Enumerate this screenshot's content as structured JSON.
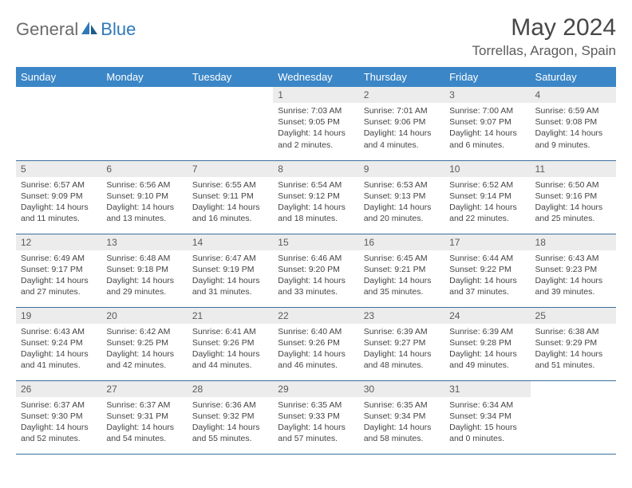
{
  "brand": {
    "text1": "General",
    "text2": "Blue"
  },
  "title": "May 2024",
  "location": "Torrellas, Aragon, Spain",
  "colors": {
    "header_bg": "#3b86c6",
    "header_text": "#ffffff",
    "row_border": "#3b6f9d",
    "daynum_bg": "#ececec",
    "daynum_text": "#5a5a5a",
    "body_text": "#444444",
    "title_text": "#474747",
    "location_text": "#5b5b5b",
    "logo_gray": "#6b6b6b",
    "logo_blue": "#2e79b8"
  },
  "typography": {
    "title_fontsize": 30,
    "location_fontsize": 17,
    "header_fontsize": 13,
    "daynum_fontsize": 12,
    "body_fontsize": 10.5
  },
  "weekdays": [
    "Sunday",
    "Monday",
    "Tuesday",
    "Wednesday",
    "Thursday",
    "Friday",
    "Saturday"
  ],
  "weeks": [
    [
      {
        "empty": true
      },
      {
        "empty": true
      },
      {
        "empty": true
      },
      {
        "day": "1",
        "sunrise": "Sunrise: 7:03 AM",
        "sunset": "Sunset: 9:05 PM",
        "daylight": "Daylight: 14 hours and 2 minutes."
      },
      {
        "day": "2",
        "sunrise": "Sunrise: 7:01 AM",
        "sunset": "Sunset: 9:06 PM",
        "daylight": "Daylight: 14 hours and 4 minutes."
      },
      {
        "day": "3",
        "sunrise": "Sunrise: 7:00 AM",
        "sunset": "Sunset: 9:07 PM",
        "daylight": "Daylight: 14 hours and 6 minutes."
      },
      {
        "day": "4",
        "sunrise": "Sunrise: 6:59 AM",
        "sunset": "Sunset: 9:08 PM",
        "daylight": "Daylight: 14 hours and 9 minutes."
      }
    ],
    [
      {
        "day": "5",
        "sunrise": "Sunrise: 6:57 AM",
        "sunset": "Sunset: 9:09 PM",
        "daylight": "Daylight: 14 hours and 11 minutes."
      },
      {
        "day": "6",
        "sunrise": "Sunrise: 6:56 AM",
        "sunset": "Sunset: 9:10 PM",
        "daylight": "Daylight: 14 hours and 13 minutes."
      },
      {
        "day": "7",
        "sunrise": "Sunrise: 6:55 AM",
        "sunset": "Sunset: 9:11 PM",
        "daylight": "Daylight: 14 hours and 16 minutes."
      },
      {
        "day": "8",
        "sunrise": "Sunrise: 6:54 AM",
        "sunset": "Sunset: 9:12 PM",
        "daylight": "Daylight: 14 hours and 18 minutes."
      },
      {
        "day": "9",
        "sunrise": "Sunrise: 6:53 AM",
        "sunset": "Sunset: 9:13 PM",
        "daylight": "Daylight: 14 hours and 20 minutes."
      },
      {
        "day": "10",
        "sunrise": "Sunrise: 6:52 AM",
        "sunset": "Sunset: 9:14 PM",
        "daylight": "Daylight: 14 hours and 22 minutes."
      },
      {
        "day": "11",
        "sunrise": "Sunrise: 6:50 AM",
        "sunset": "Sunset: 9:16 PM",
        "daylight": "Daylight: 14 hours and 25 minutes."
      }
    ],
    [
      {
        "day": "12",
        "sunrise": "Sunrise: 6:49 AM",
        "sunset": "Sunset: 9:17 PM",
        "daylight": "Daylight: 14 hours and 27 minutes."
      },
      {
        "day": "13",
        "sunrise": "Sunrise: 6:48 AM",
        "sunset": "Sunset: 9:18 PM",
        "daylight": "Daylight: 14 hours and 29 minutes."
      },
      {
        "day": "14",
        "sunrise": "Sunrise: 6:47 AM",
        "sunset": "Sunset: 9:19 PM",
        "daylight": "Daylight: 14 hours and 31 minutes."
      },
      {
        "day": "15",
        "sunrise": "Sunrise: 6:46 AM",
        "sunset": "Sunset: 9:20 PM",
        "daylight": "Daylight: 14 hours and 33 minutes."
      },
      {
        "day": "16",
        "sunrise": "Sunrise: 6:45 AM",
        "sunset": "Sunset: 9:21 PM",
        "daylight": "Daylight: 14 hours and 35 minutes."
      },
      {
        "day": "17",
        "sunrise": "Sunrise: 6:44 AM",
        "sunset": "Sunset: 9:22 PM",
        "daylight": "Daylight: 14 hours and 37 minutes."
      },
      {
        "day": "18",
        "sunrise": "Sunrise: 6:43 AM",
        "sunset": "Sunset: 9:23 PM",
        "daylight": "Daylight: 14 hours and 39 minutes."
      }
    ],
    [
      {
        "day": "19",
        "sunrise": "Sunrise: 6:43 AM",
        "sunset": "Sunset: 9:24 PM",
        "daylight": "Daylight: 14 hours and 41 minutes."
      },
      {
        "day": "20",
        "sunrise": "Sunrise: 6:42 AM",
        "sunset": "Sunset: 9:25 PM",
        "daylight": "Daylight: 14 hours and 42 minutes."
      },
      {
        "day": "21",
        "sunrise": "Sunrise: 6:41 AM",
        "sunset": "Sunset: 9:26 PM",
        "daylight": "Daylight: 14 hours and 44 minutes."
      },
      {
        "day": "22",
        "sunrise": "Sunrise: 6:40 AM",
        "sunset": "Sunset: 9:26 PM",
        "daylight": "Daylight: 14 hours and 46 minutes."
      },
      {
        "day": "23",
        "sunrise": "Sunrise: 6:39 AM",
        "sunset": "Sunset: 9:27 PM",
        "daylight": "Daylight: 14 hours and 48 minutes."
      },
      {
        "day": "24",
        "sunrise": "Sunrise: 6:39 AM",
        "sunset": "Sunset: 9:28 PM",
        "daylight": "Daylight: 14 hours and 49 minutes."
      },
      {
        "day": "25",
        "sunrise": "Sunrise: 6:38 AM",
        "sunset": "Sunset: 9:29 PM",
        "daylight": "Daylight: 14 hours and 51 minutes."
      }
    ],
    [
      {
        "day": "26",
        "sunrise": "Sunrise: 6:37 AM",
        "sunset": "Sunset: 9:30 PM",
        "daylight": "Daylight: 14 hours and 52 minutes."
      },
      {
        "day": "27",
        "sunrise": "Sunrise: 6:37 AM",
        "sunset": "Sunset: 9:31 PM",
        "daylight": "Daylight: 14 hours and 54 minutes."
      },
      {
        "day": "28",
        "sunrise": "Sunrise: 6:36 AM",
        "sunset": "Sunset: 9:32 PM",
        "daylight": "Daylight: 14 hours and 55 minutes."
      },
      {
        "day": "29",
        "sunrise": "Sunrise: 6:35 AM",
        "sunset": "Sunset: 9:33 PM",
        "daylight": "Daylight: 14 hours and 57 minutes."
      },
      {
        "day": "30",
        "sunrise": "Sunrise: 6:35 AM",
        "sunset": "Sunset: 9:34 PM",
        "daylight": "Daylight: 14 hours and 58 minutes."
      },
      {
        "day": "31",
        "sunrise": "Sunrise: 6:34 AM",
        "sunset": "Sunset: 9:34 PM",
        "daylight": "Daylight: 15 hours and 0 minutes."
      },
      {
        "empty": true
      }
    ]
  ]
}
